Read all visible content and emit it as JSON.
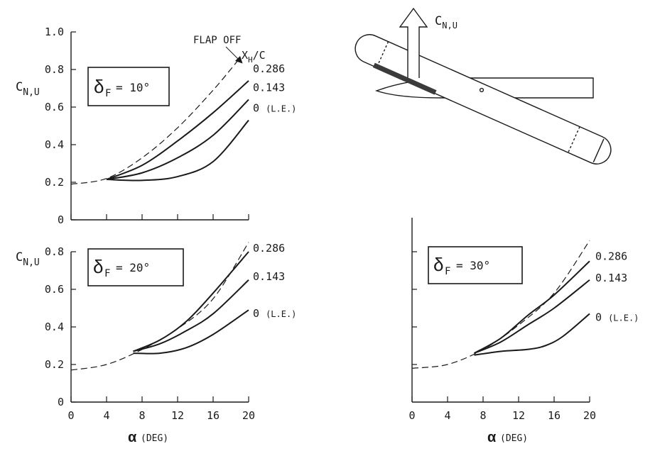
{
  "chart_data": [
    {
      "type": "line",
      "panel_label": "δF = 10°",
      "xlim": [
        0,
        20
      ],
      "ylim": [
        0,
        1.0
      ],
      "x_ticks": [
        "0",
        "4",
        "8",
        "12",
        "16",
        "20"
      ],
      "y_ticks": [
        "0",
        "0.2",
        "0.4",
        "0.6",
        "0.8",
        "1.0"
      ],
      "ylabel": "CN,U",
      "xlabel": "",
      "legend_title": "XH/C",
      "series": [
        {
          "name": "FLAP OFF",
          "style": "dashed",
          "x": [
            0,
            4,
            8,
            12,
            16,
            19
          ],
          "y": [
            0.19,
            0.22,
            0.33,
            0.49,
            0.69,
            0.86
          ]
        },
        {
          "name": "0.286",
          "style": "solid",
          "x": [
            4,
            8,
            12,
            16,
            20
          ],
          "y": [
            0.215,
            0.29,
            0.42,
            0.57,
            0.74
          ]
        },
        {
          "name": "0.143",
          "style": "solid",
          "x": [
            4,
            8,
            12,
            16,
            20
          ],
          "y": [
            0.215,
            0.25,
            0.33,
            0.45,
            0.64
          ]
        },
        {
          "name": "0 (L.E.)",
          "style": "solid",
          "x": [
            4,
            8,
            12,
            16,
            20
          ],
          "y": [
            0.215,
            0.21,
            0.23,
            0.31,
            0.53
          ]
        }
      ]
    },
    {
      "type": "line",
      "panel_label": "δF = 20°",
      "xlim": [
        0,
        20
      ],
      "ylim": [
        0,
        0.8
      ],
      "x_ticks": [
        "0",
        "4",
        "8",
        "12",
        "16",
        "20"
      ],
      "y_ticks": [
        "0",
        "0.2",
        "0.4",
        "0.6",
        "0.8"
      ],
      "ylabel": "CN,U",
      "xlabel": "α (DEG)",
      "series": [
        {
          "name": "FLAP OFF",
          "style": "dashed",
          "x": [
            0,
            4,
            8,
            12,
            16,
            20
          ],
          "y": [
            0.17,
            0.2,
            0.28,
            0.39,
            0.55,
            0.85
          ]
        },
        {
          "name": "0.286",
          "style": "solid",
          "x": [
            7,
            10,
            13,
            16,
            20
          ],
          "y": [
            0.27,
            0.33,
            0.43,
            0.58,
            0.8
          ]
        },
        {
          "name": "0.143",
          "style": "solid",
          "x": [
            7,
            10,
            13,
            16,
            20
          ],
          "y": [
            0.27,
            0.31,
            0.38,
            0.47,
            0.65
          ]
        },
        {
          "name": "0 (L.E.)",
          "style": "solid",
          "x": [
            7,
            10,
            13,
            16,
            20
          ],
          "y": [
            0.26,
            0.26,
            0.29,
            0.36,
            0.49
          ]
        }
      ]
    },
    {
      "type": "line",
      "panel_label": "δF = 30°",
      "xlim": [
        0,
        20
      ],
      "ylim": [
        0,
        0.8
      ],
      "x_ticks": [
        "0",
        "4",
        "8",
        "12",
        "16",
        "20"
      ],
      "xlabel": "α (DEG)",
      "series": [
        {
          "name": "FLAP OFF",
          "style": "dashed",
          "x": [
            0,
            4,
            8,
            12,
            16,
            20
          ],
          "y": [
            0.18,
            0.2,
            0.28,
            0.41,
            0.58,
            0.86
          ]
        },
        {
          "name": "0.286",
          "style": "solid",
          "x": [
            7,
            10,
            13,
            16,
            20
          ],
          "y": [
            0.26,
            0.34,
            0.46,
            0.57,
            0.75
          ]
        },
        {
          "name": "0.143",
          "style": "solid",
          "x": [
            7,
            10,
            13,
            16,
            20
          ],
          "y": [
            0.26,
            0.32,
            0.41,
            0.5,
            0.65
          ]
        },
        {
          "name": "0 (L.E.)",
          "style": "solid",
          "x": [
            7,
            10,
            13,
            15,
            17,
            20
          ],
          "y": [
            0.25,
            0.27,
            0.28,
            0.3,
            0.35,
            0.47
          ]
        }
      ]
    }
  ],
  "labels": {
    "flap_off": "FLAP OFF",
    "legend_title": "XH/C",
    "diagram_label": "CN,U",
    "alpha_symbol": "α",
    "alpha_unit": "(DEG)"
  }
}
